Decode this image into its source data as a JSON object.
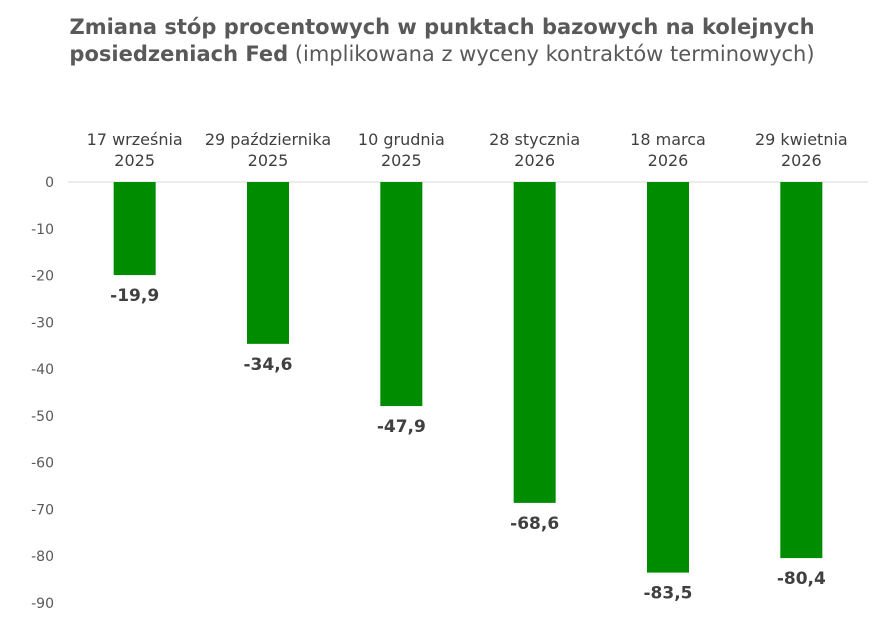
{
  "chart_data": {
    "type": "bar",
    "title_bold": "Zmiana stóp procentowych w punktach bazowych na kolejnych posiedzeniach Fed",
    "title_normal": "(implikowana z wyceny kontraktów terminowych)",
    "categories": [
      [
        "17 września",
        "2025"
      ],
      [
        "29 października",
        "2025"
      ],
      [
        "10 grudnia",
        "2025"
      ],
      [
        "28 stycznia",
        "2026"
      ],
      [
        "18 marca",
        "2026"
      ],
      [
        "29 kwietnia",
        "2026"
      ]
    ],
    "values": [
      -19.9,
      -34.6,
      -47.9,
      -68.6,
      -83.5,
      -80.4
    ],
    "data_labels": [
      "-19,9",
      "-34,6",
      "-47,9",
      "-68,6",
      "-83,5",
      "-80,4"
    ],
    "yticks": [
      0,
      -10,
      -20,
      -30,
      -40,
      -50,
      -60,
      -70,
      -80,
      -90
    ],
    "ylim": [
      -90,
      0
    ],
    "bar_color": "#008c00",
    "category_axis_position": "top",
    "grid": false
  }
}
